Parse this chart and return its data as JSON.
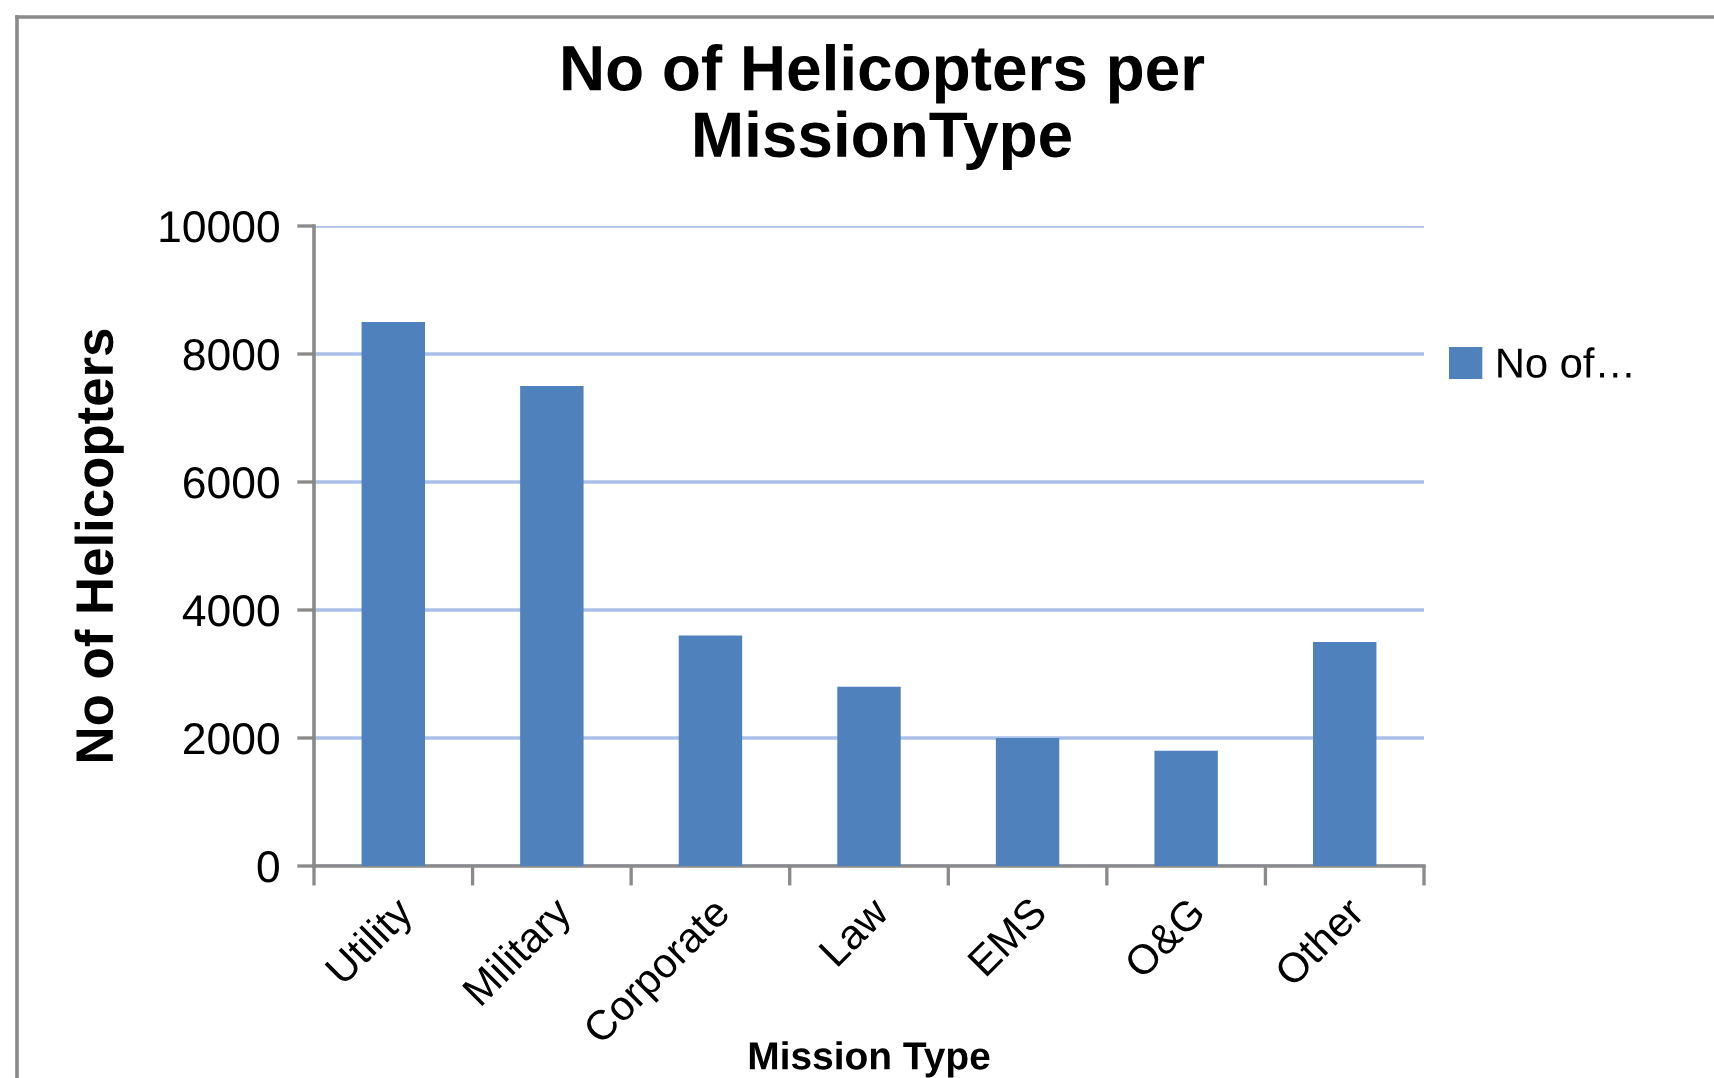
{
  "chart_data": {
    "type": "bar",
    "title": "No of Helicopters per\nMissionType",
    "xlabel": "Mission Type",
    "ylabel": "No of Helicopters",
    "categories": [
      "Utility",
      "Military",
      "Corporate",
      "Law",
      "EMS",
      "O&G",
      "Other"
    ],
    "series": [
      {
        "name": "No of…",
        "color": "#4f81bd",
        "values": [
          8500,
          7500,
          3600,
          2800,
          2000,
          1800,
          3500
        ]
      }
    ],
    "ylim": [
      0,
      10000
    ],
    "yticks": [
      0,
      2000,
      4000,
      6000,
      8000,
      10000
    ],
    "grid": "y",
    "legend": "right"
  }
}
